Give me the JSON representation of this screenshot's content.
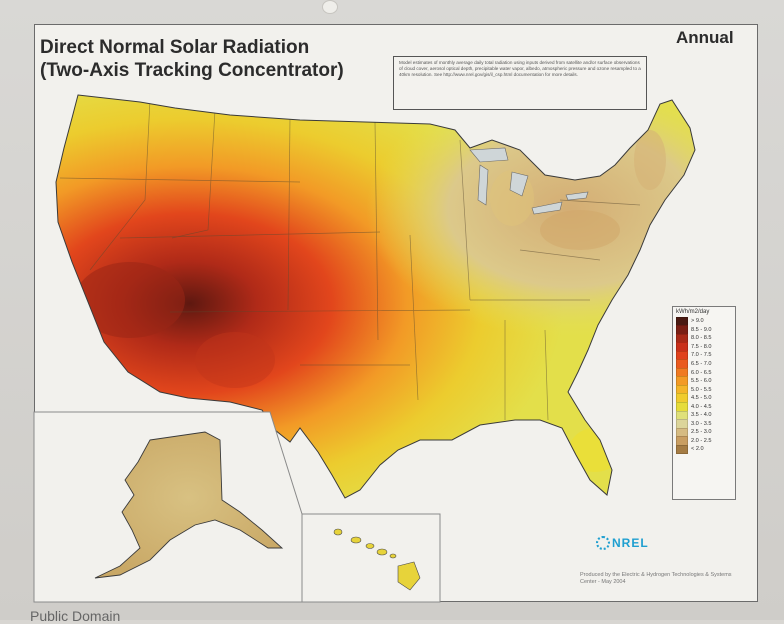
{
  "map": {
    "title_line1": "Direct Normal Solar Radiation",
    "title_line2": "(Two-Axis Tracking Concentrator)",
    "period": "Annual",
    "note": "Model estimates of monthly average daily total radiation using inputs derived from satellite and/or surface observations of cloud cover, aerosol optical depth, precipitable water vapor, albedo, atmospheric pressure and ozone resampled to a 40km resolution. See http://www.nrel.gov/gis/il_csp.html documentation for more details.",
    "legend": {
      "title": "kWh/m2/day",
      "items": [
        {
          "label": "> 9.0",
          "color": "#4a1a12"
        },
        {
          "label": "8.5 - 9.0",
          "color": "#7a1f14"
        },
        {
          "label": "8.0 - 8.5",
          "color": "#a82a18"
        },
        {
          "label": "7.5 - 8.0",
          "color": "#c9301a"
        },
        {
          "label": "7.0 - 7.5",
          "color": "#e0411c"
        },
        {
          "label": "6.5 - 7.0",
          "color": "#ea5a1e"
        },
        {
          "label": "6.0 - 6.5",
          "color": "#f07a22"
        },
        {
          "label": "5.5 - 6.0",
          "color": "#f39a26"
        },
        {
          "label": "5.0 - 5.5",
          "color": "#f4b52a"
        },
        {
          "label": "4.5 - 5.0",
          "color": "#f0cc2e"
        },
        {
          "label": "4.0 - 4.5",
          "color": "#e6dc3a"
        },
        {
          "label": "3.5 - 4.0",
          "color": "#dfe07a"
        },
        {
          "label": "3.0 - 3.5",
          "color": "#dcd59a"
        },
        {
          "label": "2.5 - 3.0",
          "color": "#d6bb82"
        },
        {
          "label": "2.0 - 2.5",
          "color": "#c99e62"
        },
        {
          "label": "< 2.0",
          "color": "#a57c44"
        }
      ]
    },
    "logo_text": "NREL",
    "credit": "Produced by the Electric & Hydrogen Technologies & Systems Center - May 2004"
  },
  "source_caption": "Public Domain",
  "icons": [
    "camera-dot-icon",
    "nrel-logo-icon"
  ]
}
